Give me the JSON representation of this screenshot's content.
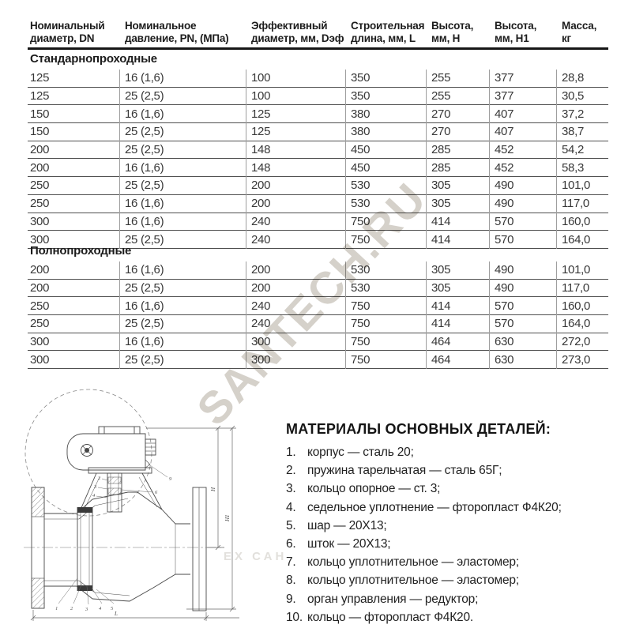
{
  "table": {
    "columns": [
      "Номинальный диаметр, DN",
      "Номинальное давление, PN, (МПа)",
      "Эффективный диаметр, мм, Dэф",
      "Строительная длина, мм, L",
      "Высота, мм, H",
      "Высота, мм, H1",
      "Масса, кг"
    ],
    "sections": [
      {
        "label": "Стандарнопроходные",
        "rows": [
          [
            "125",
            "16 (1,6)",
            "100",
            "350",
            "255",
            "377",
            "28,8"
          ],
          [
            "125",
            "25 (2,5)",
            "100",
            "350",
            "255",
            "377",
            "30,5"
          ],
          [
            "150",
            "16 (1,6)",
            "125",
            "380",
            "270",
            "407",
            "37,2"
          ],
          [
            "150",
            "25 (2,5)",
            "125",
            "380",
            "270",
            "407",
            "38,7"
          ],
          [
            "200",
            "25 (2,5)",
            "148",
            "450",
            "285",
            "452",
            "54,2"
          ],
          [
            "200",
            "16 (1,6)",
            "148",
            "450",
            "285",
            "452",
            "58,3"
          ],
          [
            "250",
            "25 (2,5)",
            "200",
            "530",
            "305",
            "490",
            "101,0"
          ],
          [
            "250",
            "16 (1,6)",
            "200",
            "530",
            "305",
            "490",
            "117,0"
          ],
          [
            "300",
            "16 (1,6)",
            "240",
            "750",
            "414",
            "570",
            "160,0"
          ],
          [
            "300",
            "25 (2,5)",
            "240",
            "750",
            "414",
            "570",
            "164,0"
          ]
        ]
      },
      {
        "label": "Полнопроходные",
        "rows": [
          [
            "200",
            "16 (1,6)",
            "200",
            "530",
            "305",
            "490",
            "101,0"
          ],
          [
            "200",
            "25 (2,5)",
            "200",
            "530",
            "305",
            "490",
            "117,0"
          ],
          [
            "250",
            "16 (1,6)",
            "240",
            "750",
            "414",
            "570",
            "160,0"
          ],
          [
            "250",
            "25 (2,5)",
            "240",
            "750",
            "414",
            "570",
            "164,0"
          ],
          [
            "300",
            "16 (1,6)",
            "300",
            "750",
            "464",
            "630",
            "272,0"
          ],
          [
            "300",
            "25 (2,5)",
            "300",
            "750",
            "464",
            "630",
            "273,0"
          ]
        ]
      }
    ]
  },
  "materials": {
    "title": "МАТЕРИАЛЫ ОСНОВНЫХ ДЕТАЛЕЙ:",
    "items": [
      {
        "num": "1.",
        "text": "корпус — сталь 20;"
      },
      {
        "num": "2.",
        "text": "пружина тарельчатая — сталь 65Г;"
      },
      {
        "num": "3.",
        "text": "кольцо опорное — ст. 3;"
      },
      {
        "num": "4.",
        "text": "седельное уплотнение — фторопласт Ф4К20;"
      },
      {
        "num": "5.",
        "text": "шар — 20Х13;"
      },
      {
        "num": "6.",
        "text": "шток — 20Х13;"
      },
      {
        "num": "7.",
        "text": "кольцо уплотнительное — эластомер;"
      },
      {
        "num": "8.",
        "text": "кольцо уплотнительное — эластомер;"
      },
      {
        "num": "9.",
        "text": "орган управления — редуктор;"
      },
      {
        "num": "10.",
        "text": "кольцо — фторопласт Ф4К20."
      }
    ]
  },
  "watermark": {
    "main": "SANTECH.RU",
    "fragment": "ЕХ САН"
  },
  "drawing": {
    "dim_h": "H",
    "dim_h1": "H1",
    "dim_l": "L",
    "callouts_bottom": [
      "1",
      "2",
      "3",
      "4",
      "5"
    ],
    "callouts_stem": [
      "2",
      "3",
      "4"
    ],
    "callout_right_top": "9",
    "callout_right_mid": "6"
  },
  "colors": {
    "page_bg": "#ffffff",
    "text": "#2f2f2f",
    "thick_rule": "#161616",
    "row_rule": "#4f4f4f",
    "col_rule": "#9e9e9e",
    "watermark_main": "#d5d1ca",
    "watermark_fragment": "#e2e0dc",
    "drawing_line": "#4a4a4a"
  }
}
